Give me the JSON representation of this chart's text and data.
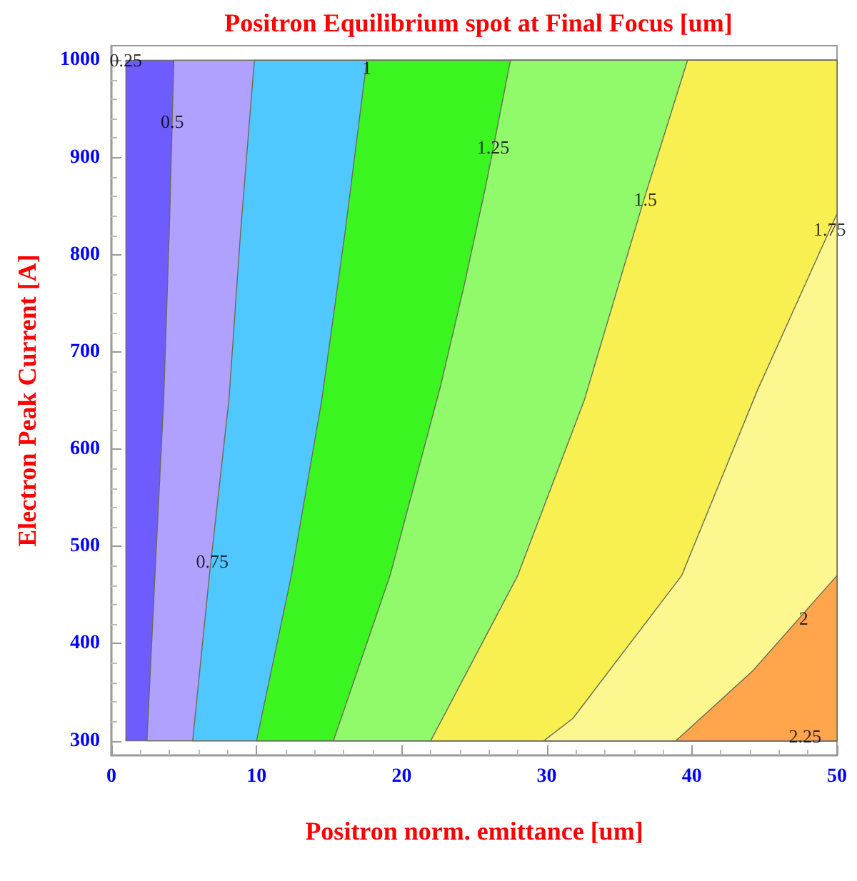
{
  "chart_data": {
    "type": "area",
    "title": "Positron Equilibrium spot at Final Focus [um]",
    "xlabel": "Positron norm. emittance [um]",
    "ylabel": "Electron Peak Current [A]",
    "xlim": [
      0,
      50
    ],
    "ylim": [
      285,
      1015
    ],
    "xticks": [
      0,
      10,
      20,
      30,
      40,
      50
    ],
    "yticks": [
      300,
      400,
      500,
      600,
      700,
      800,
      900,
      1000
    ],
    "grid": false,
    "series": [
      {
        "color": "#6e5cff",
        "x": [
          1.0,
          1.0,
          50,
          50
        ],
        "values": [
          300,
          1000,
          1000,
          300
        ]
      },
      {
        "color": "#b0a0ff",
        "x": [
          2.45,
          3.0,
          3.6,
          4.0,
          4.3,
          50,
          50
        ],
        "values": [
          300,
          470,
          650,
          830,
          1000,
          1000,
          300
        ]
      },
      {
        "color": "#50c8ff",
        "x": [
          5.6,
          6.75,
          8.1,
          8.9,
          9.85,
          50,
          50
        ],
        "values": [
          300,
          470,
          651,
          823,
          1000,
          1000,
          300
        ]
      },
      {
        "color": "#3af520",
        "x": [
          10.0,
          12.4,
          14.5,
          16.1,
          17.6,
          50,
          50
        ],
        "values": [
          300,
          470,
          651,
          823,
          1000,
          1000,
          300
        ]
      },
      {
        "color": "#90fa6a",
        "x": [
          15.3,
          19.2,
          22.7,
          24.3,
          25.8,
          27.5,
          50,
          50
        ],
        "values": [
          300,
          470,
          666,
          768,
          871,
          1000,
          1000,
          300
        ]
      },
      {
        "color": "#f8ef50",
        "x": [
          22.0,
          28.0,
          32.6,
          36.7,
          39.7,
          50,
          50
        ],
        "values": [
          300,
          470,
          651,
          857,
          1000,
          1000,
          300
        ]
      },
      {
        "color": "#fdf790",
        "x": [
          29.8,
          31.8,
          39.3,
          44.5,
          50,
          50
        ],
        "values": [
          300,
          323,
          470,
          660,
          842,
          300
        ]
      },
      {
        "color": "#ffa64d",
        "x": [
          38.9,
          44.2,
          50,
          50
        ],
        "values": [
          300,
          372,
          470,
          300
        ]
      }
    ],
    "annotations": [
      {
        "text": "0.25",
        "x": 1.0,
        "y": 1000
      },
      {
        "text": "0.5",
        "x": 4.2,
        "y": 937
      },
      {
        "text": "0.75",
        "x": 6.95,
        "y": 485
      },
      {
        "text": "1",
        "x": 17.6,
        "y": 992
      },
      {
        "text": "1.25",
        "x": 26.3,
        "y": 911
      },
      {
        "text": "1.5",
        "x": 36.8,
        "y": 857
      },
      {
        "text": "1.75",
        "x": 49.5,
        "y": 826
      },
      {
        "text": "2",
        "x": 47.7,
        "y": 426
      },
      {
        "text": "2.25",
        "x": 47.8,
        "y": 305
      }
    ]
  }
}
